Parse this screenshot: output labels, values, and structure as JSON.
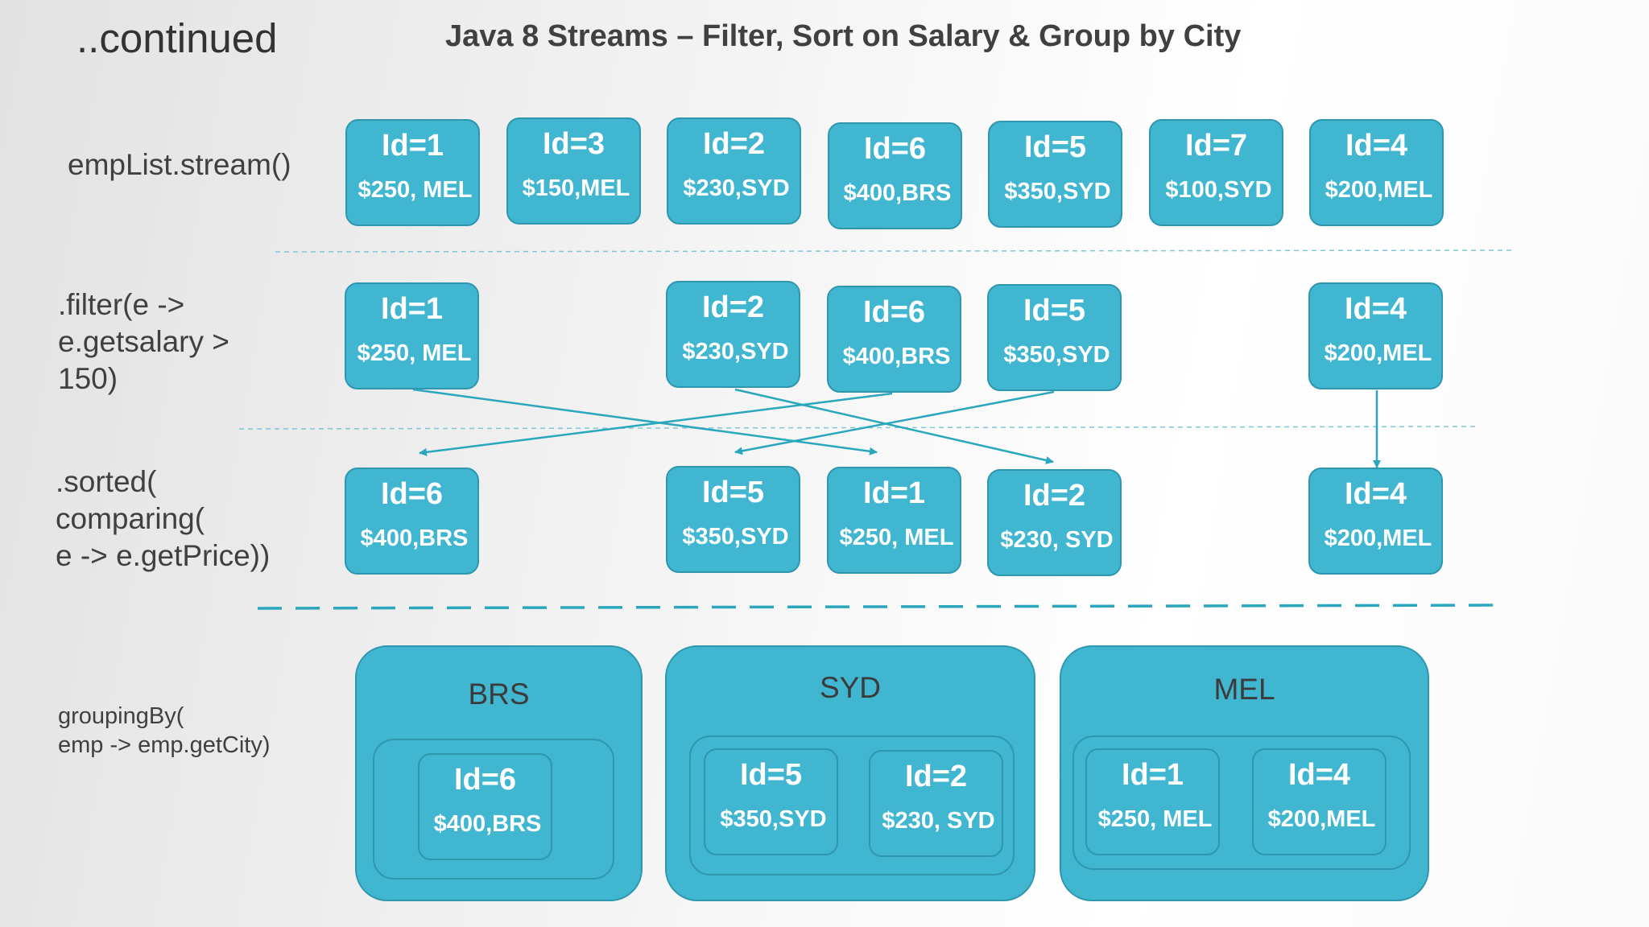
{
  "heading": {
    "continued": "..continued",
    "title": "Java 8 Streams – Filter, Sort on Salary & Group by City"
  },
  "steps": {
    "stream": "empList.stream()",
    "filter": ".filter(e ->\ne.getsalary >\n150)",
    "sorted": ".sorted(\ncomparing(\ne -> e.getPrice))",
    "grouping": "groupingBy(\nemp -> emp.getCity)"
  },
  "rows": {
    "stream": [
      {
        "id": "Id=1",
        "val": "$250, MEL"
      },
      {
        "id": "Id=3",
        "val": "$150,MEL"
      },
      {
        "id": "Id=2",
        "val": "$230,SYD"
      },
      {
        "id": "Id=6",
        "val": "$400,BRS"
      },
      {
        "id": "Id=5",
        "val": "$350,SYD"
      },
      {
        "id": "Id=7",
        "val": "$100,SYD"
      },
      {
        "id": "Id=4",
        "val": "$200,MEL"
      }
    ],
    "filter": [
      {
        "id": "Id=1",
        "val": "$250, MEL"
      },
      {
        "id": "Id=2",
        "val": "$230,SYD"
      },
      {
        "id": "Id=6",
        "val": "$400,BRS"
      },
      {
        "id": "Id=5",
        "val": "$350,SYD"
      },
      {
        "id": "Id=4",
        "val": "$200,MEL"
      }
    ],
    "sorted": [
      {
        "id": "Id=6",
        "val": "$400,BRS"
      },
      {
        "id": "Id=5",
        "val": "$350,SYD"
      },
      {
        "id": "Id=1",
        "val": "$250, MEL"
      },
      {
        "id": "Id=2",
        "val": "$230, SYD"
      },
      {
        "id": "Id=4",
        "val": "$200,MEL"
      }
    ]
  },
  "groups": [
    {
      "name": "BRS",
      "items": [
        {
          "id": "Id=6",
          "val": "$400,BRS"
        }
      ]
    },
    {
      "name": "SYD",
      "items": [
        {
          "id": "Id=5",
          "val": "$350,SYD"
        },
        {
          "id": "Id=2",
          "val": "$230, SYD"
        }
      ]
    },
    {
      "name": "MEL",
      "items": [
        {
          "id": "Id=1",
          "val": "$250, MEL"
        },
        {
          "id": "Id=4",
          "val": "$200,MEL"
        }
      ]
    }
  ],
  "colors": {
    "card_fill": "#41b6d1",
    "card_border": "#2e97ae",
    "arrow": "#2aa6bd",
    "text_dark": "#404040"
  }
}
